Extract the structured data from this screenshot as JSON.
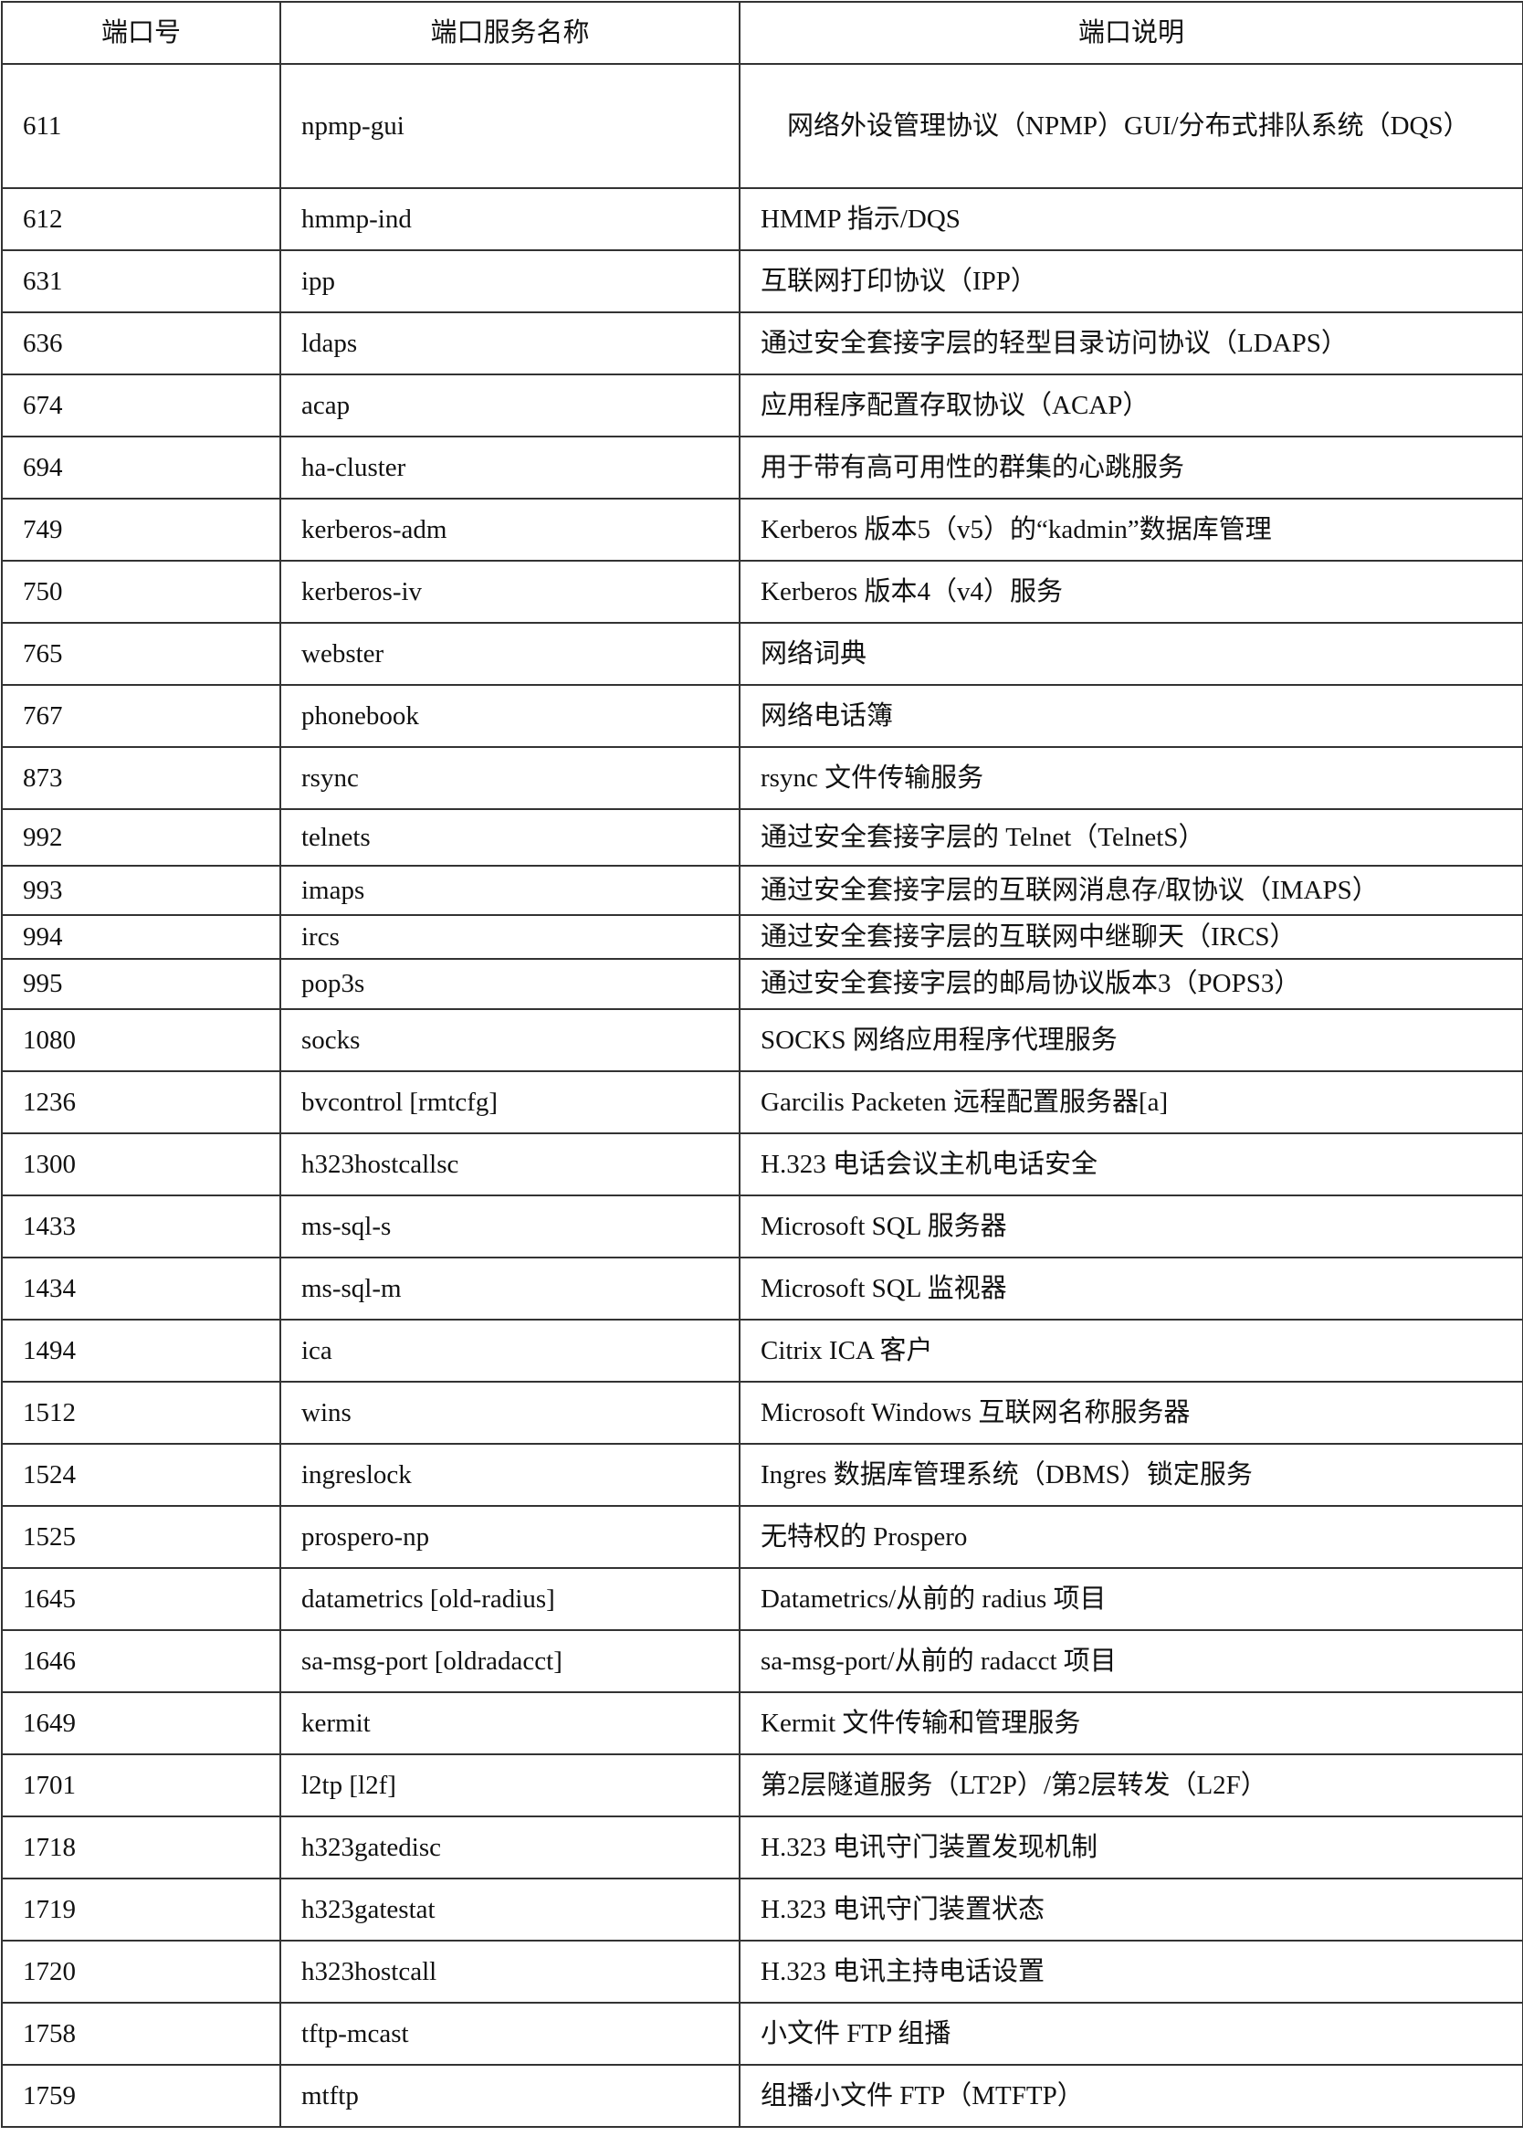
{
  "table": {
    "headers": [
      "端口号",
      "端口服务名称",
      "端口说明"
    ],
    "rows": [
      {
        "port": "611",
        "service": "npmp-gui",
        "desc": "　网络外设管理协议（NPMP）GUI/分布式排队系统（DQS）"
      },
      {
        "port": "612",
        "service": "hmmp-ind",
        "desc": "HMMP 指示/DQS"
      },
      {
        "port": "631",
        "service": "ipp",
        "desc": "互联网打印协议（IPP）"
      },
      {
        "port": "636",
        "service": "ldaps",
        "desc": "通过安全套接字层的轻型目录访问协议（LDAPS）"
      },
      {
        "port": "674",
        "service": "acap",
        "desc": "应用程序配置存取协议（ACAP）"
      },
      {
        "port": "694",
        "service": "ha-cluster",
        "desc": "用于带有高可用性的群集的心跳服务"
      },
      {
        "port": "749",
        "service": "kerberos-adm",
        "desc": "Kerberos 版本5（v5）的“kadmin”数据库管理"
      },
      {
        "port": "750",
        "service": "kerberos-iv",
        "desc": "Kerberos 版本4（v4）服务"
      },
      {
        "port": "765",
        "service": "webster",
        "desc": "网络词典"
      },
      {
        "port": "767",
        "service": "phonebook",
        "desc": "网络电话簿"
      },
      {
        "port": "873",
        "service": "rsync",
        "desc": "rsync 文件传输服务"
      },
      {
        "port": "992",
        "service": "telnets",
        "desc": "通过安全套接字层的 Telnet（TelnetS）"
      },
      {
        "port": "993",
        "service": "imaps",
        "desc": "通过安全套接字层的互联网消息存/取协议（IMAPS）"
      },
      {
        "port": "994",
        "service": "ircs",
        "desc": "通过安全套接字层的互联网中继聊天（IRCS）"
      },
      {
        "port": "995",
        "service": "pop3s",
        "desc": "通过安全套接字层的邮局协议版本3（POPS3）"
      },
      {
        "port": "1080",
        "service": "socks",
        "desc": "SOCKS 网络应用程序代理服务"
      },
      {
        "port": "1236",
        "service": "bvcontrol [rmtcfg]",
        "desc": "Garcilis Packeten 远程配置服务器[a]"
      },
      {
        "port": "1300",
        "service": "h323hostcallsc",
        "desc": "H.323 电话会议主机电话安全"
      },
      {
        "port": "1433",
        "service": "ms-sql-s",
        "desc": "Microsoft SQL 服务器"
      },
      {
        "port": "1434",
        "service": "ms-sql-m",
        "desc": "Microsoft SQL 监视器"
      },
      {
        "port": "1494",
        "service": "ica",
        "desc": "Citrix ICA 客户"
      },
      {
        "port": "1512",
        "service": "wins",
        "desc": "Microsoft Windows 互联网名称服务器"
      },
      {
        "port": "1524",
        "service": "ingreslock",
        "desc": "Ingres 数据库管理系统（DBMS）锁定服务"
      },
      {
        "port": "1525",
        "service": "prospero-np",
        "desc": "无特权的 Prospero"
      },
      {
        "port": "1645",
        "service": "datametrics [old-radius]",
        "desc": "Datametrics/从前的 radius 项目"
      },
      {
        "port": "1646",
        "service": "sa-msg-port [oldradacct]",
        "desc": "sa-msg-port/从前的 radacct 项目"
      },
      {
        "port": "1649",
        "service": "kermit",
        "desc": "Kermit 文件传输和管理服务"
      },
      {
        "port": "1701",
        "service": "l2tp [l2f]",
        "desc": "第2层隧道服务（LT2P）/第2层转发（L2F）"
      },
      {
        "port": "1718",
        "service": "h323gatedisc",
        "desc": "H.323 电讯守门装置发现机制"
      },
      {
        "port": "1719",
        "service": "h323gatestat",
        "desc": "H.323 电讯守门装置状态"
      },
      {
        "port": "1720",
        "service": "h323hostcall",
        "desc": "H.323 电讯主持电话设置"
      },
      {
        "port": "1758",
        "service": "tftp-mcast",
        "desc": "小文件 FTP 组播"
      },
      {
        "port": "1759",
        "service": "mtftp",
        "desc": "组播小文件 FTP（MTFTP）"
      }
    ]
  }
}
